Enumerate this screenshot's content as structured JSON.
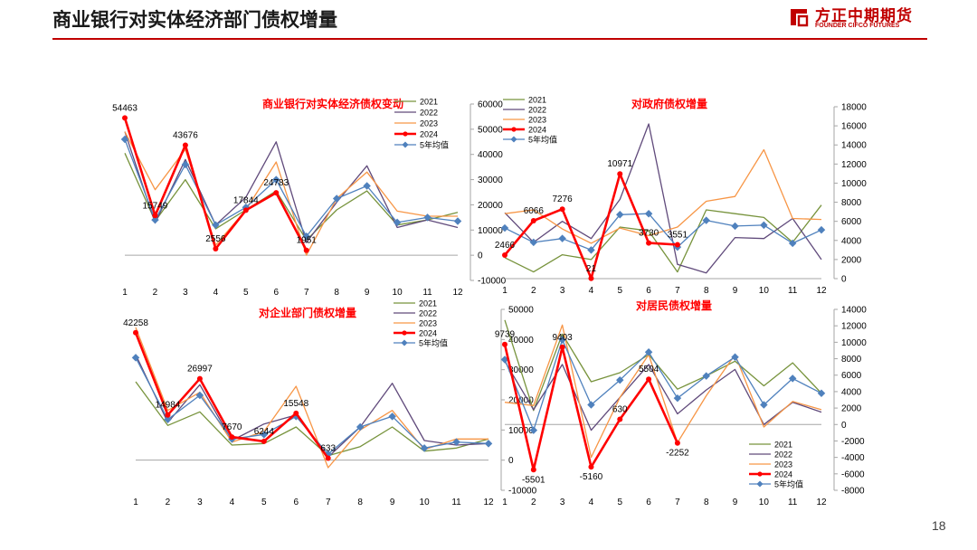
{
  "page": {
    "title": "商业银行对实体经济部门债权增量",
    "page_number": "18"
  },
  "logo": {
    "cn": "方正中期期货",
    "en": "FOUNDER CIFCO FUTURES",
    "color": "#c00000"
  },
  "colors": {
    "2021": "#77933c",
    "2022": "#604a7b",
    "2023": "#f79646",
    "2024": "#ff0000",
    "5年均值": "#4f81bd"
  },
  "chart_data": [
    {
      "type": "line",
      "title": "商业银行对实体经济债权变动",
      "categories": [
        "1",
        "2",
        "3",
        "4",
        "5",
        "6",
        "7",
        "8",
        "9",
        "10",
        "11",
        "12"
      ],
      "ylim": [
        -10000,
        60000
      ],
      "yticks": [
        -10000,
        0,
        10000,
        20000,
        30000,
        40000,
        50000,
        60000
      ],
      "y_axis_side": "right",
      "legend_position": "top-right",
      "series": [
        {
          "name": "2021",
          "values": [
            40500,
            13500,
            30000,
            10500,
            18000,
            25500,
            6000,
            18000,
            25500,
            12000,
            14000,
            17000
          ]
        },
        {
          "name": "2022",
          "values": [
            49000,
            12800,
            38000,
            12000,
            23000,
            45000,
            5000,
            21000,
            35500,
            11000,
            14000,
            11000
          ]
        },
        {
          "name": "2023",
          "values": [
            49000,
            26000,
            42000,
            4000,
            18000,
            37000,
            0,
            22500,
            33000,
            17500,
            15500,
            15500
          ]
        },
        {
          "name": "2024",
          "values": [
            54463,
            15749,
            43676,
            2556,
            17844,
            24783,
            1951,
            null,
            null,
            null,
            null,
            null
          ]
        },
        {
          "name": "5年均值",
          "values": [
            46000,
            14000,
            36000,
            12000,
            19000,
            30000,
            7500,
            22500,
            27500,
            13000,
            15000,
            13500
          ]
        }
      ],
      "data_labels": [
        "54463",
        "15749",
        "43676",
        "2556",
        "17844",
        "24783",
        "1951"
      ]
    },
    {
      "type": "line",
      "title": "对政府债权增量",
      "categories": [
        "1",
        "2",
        "3",
        "4",
        "5",
        "6",
        "7",
        "8",
        "9",
        "10",
        "11",
        "12"
      ],
      "ylim": [
        0,
        18000
      ],
      "yticks": [
        0,
        2000,
        4000,
        6000,
        8000,
        10000,
        12000,
        14000,
        16000,
        18000
      ],
      "y_axis_side": "right",
      "legend_position": "top-left",
      "series": [
        {
          "name": "2021",
          "values": [
            2200,
            700,
            2500,
            2000,
            5400,
            5000,
            700,
            7200,
            6800,
            6400,
            3800,
            7700
          ]
        },
        {
          "name": "2022",
          "values": [
            6900,
            3800,
            6000,
            4200,
            8300,
            16200,
            1500,
            600,
            4300,
            4200,
            6300,
            2000
          ]
        },
        {
          "name": "2023",
          "values": [
            6800,
            7200,
            5200,
            3700,
            5300,
            4500,
            5400,
            8100,
            8600,
            13500,
            6300,
            6200
          ]
        },
        {
          "name": "2024",
          "values": [
            2466,
            6066,
            7276,
            21,
            10971,
            3730,
            3551,
            null,
            null,
            null,
            null,
            null
          ]
        },
        {
          "name": "5年均值",
          "values": [
            5300,
            3800,
            4200,
            3000,
            6700,
            6800,
            3300,
            6100,
            5500,
            5600,
            3700,
            5100
          ]
        }
      ],
      "data_labels": [
        "2466",
        "6066",
        "7276",
        "21",
        "10971",
        "3730",
        "3551"
      ]
    },
    {
      "type": "line",
      "title": "对企业部门债权增量",
      "categories": [
        "1",
        "2",
        "3",
        "4",
        "5",
        "6",
        "7",
        "8",
        "9",
        "10",
        "11",
        "12"
      ],
      "ylim": [
        -10000,
        50000
      ],
      "yticks": [
        -10000,
        0,
        10000,
        20000,
        30000,
        40000,
        50000
      ],
      "y_axis_side": "right",
      "legend_position": "top-right",
      "series": [
        {
          "name": "2021",
          "values": [
            26000,
            11500,
            16000,
            5000,
            5500,
            11000,
            1500,
            4500,
            11000,
            3000,
            4000,
            7000
          ]
        },
        {
          "name": "2022",
          "values": [
            35000,
            12500,
            25000,
            6500,
            12000,
            15000,
            1000,
            11000,
            25500,
            6500,
            5000,
            5500
          ]
        },
        {
          "name": "2023",
          "values": [
            44000,
            16500,
            22500,
            6000,
            9500,
            24500,
            -2500,
            10000,
            16500,
            3500,
            7000,
            7000
          ]
        },
        {
          "name": "2024",
          "values": [
            42258,
            14984,
            26997,
            7670,
            6244,
            15548,
            633,
            null,
            null,
            null,
            null,
            null
          ]
        },
        {
          "name": "5年均值",
          "values": [
            34000,
            13500,
            21500,
            7000,
            8500,
            14500,
            2000,
            11000,
            14500,
            4000,
            6000,
            5500
          ]
        }
      ],
      "data_labels": [
        "42258",
        "14984",
        "26997",
        "7670",
        "6244",
        "15548",
        "633"
      ]
    },
    {
      "type": "line",
      "title": "对居民债权增量",
      "categories": [
        "1",
        "2",
        "3",
        "4",
        "5",
        "6",
        "7",
        "8",
        "9",
        "10",
        "11",
        "12"
      ],
      "ylim": [
        -8000,
        14000
      ],
      "yticks": [
        -8000,
        -6000,
        -4000,
        -2000,
        0,
        2000,
        4000,
        6000,
        8000,
        10000,
        12000,
        14000
      ],
      "y_axis_side": "right",
      "legend_position": "bottom-right",
      "series": [
        {
          "name": "2021",
          "values": [
            12700,
            1700,
            11000,
            5200,
            6300,
            8500,
            4300,
            5900,
            7700,
            4700,
            7500,
            3800
          ]
        },
        {
          "name": "2022",
          "values": [
            7700,
            1800,
            7300,
            -700,
            3300,
            7300,
            1300,
            4200,
            6700,
            0,
            2700,
            1500
          ]
        },
        {
          "name": "2023",
          "values": [
            2700,
            2300,
            12100,
            -4000,
            3300,
            8500,
            -2200,
            3500,
            8500,
            -300,
            2800,
            1800
          ]
        },
        {
          "name": "2024",
          "values": [
            9739,
            -5501,
            9403,
            -5160,
            630,
            5504,
            -2252,
            null,
            null,
            null,
            null,
            null
          ]
        },
        {
          "name": "5年均值",
          "values": [
            7900,
            -700,
            10300,
            2400,
            5400,
            8800,
            3200,
            5900,
            8200,
            2400,
            5600,
            3800
          ]
        }
      ],
      "data_labels": [
        "9739",
        "-5501",
        "9403",
        "-5160",
        "630",
        "5504",
        "-2252"
      ]
    }
  ]
}
